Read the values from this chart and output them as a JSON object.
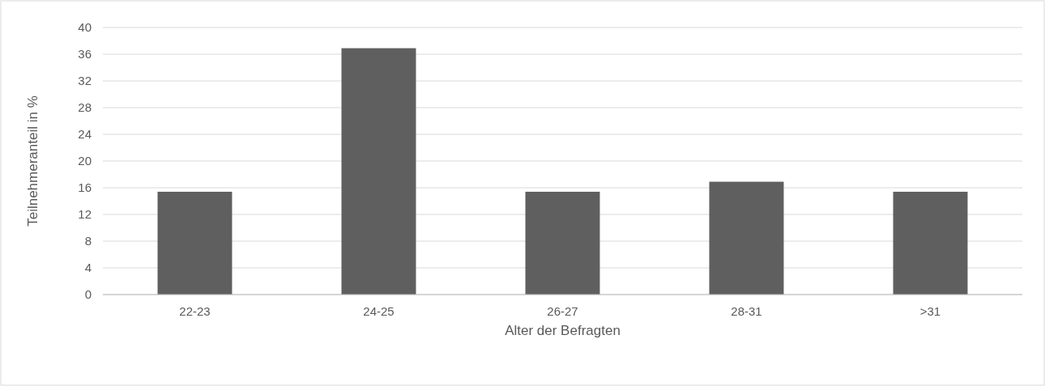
{
  "chart_data": {
    "type": "bar",
    "xlabel": "Alter der Befragten",
    "ylabel": "Teilnehmeranteil in %",
    "categories": [
      "22-23",
      "24-25",
      "26-27",
      "28-31",
      ">31"
    ],
    "values": [
      15.4,
      36.9,
      15.4,
      16.9,
      15.4
    ],
    "color": "#5f5f5f",
    "ylim": [
      0,
      40
    ],
    "yticks": [
      0,
      4,
      8,
      12,
      16,
      20,
      24,
      28,
      32,
      36,
      40
    ],
    "grid": "y"
  }
}
